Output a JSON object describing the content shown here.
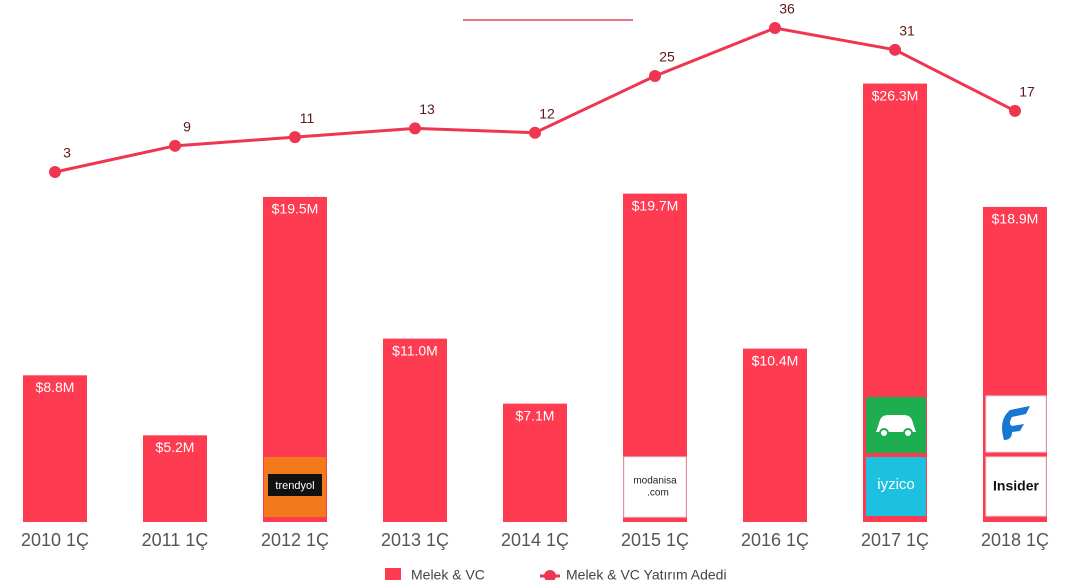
{
  "chart_data": {
    "type": "bar",
    "categories": [
      "2010 1Ç",
      "2011 1Ç",
      "2012 1Ç",
      "2013 1Ç",
      "2014 1Ç",
      "2015 1Ç",
      "2016 1Ç",
      "2017 1Ç",
      "2018 1Ç"
    ],
    "series": [
      {
        "name": "Melek & VC",
        "type": "bar",
        "color": "#fe3b51",
        "values": [
          8.8,
          5.2,
          19.5,
          11.0,
          7.1,
          19.7,
          10.4,
          26.3,
          18.9
        ],
        "value_labels": [
          "$8.8M",
          "$5.2M",
          "$19.5M",
          "$11.0M",
          "$7.1M",
          "$19.7M",
          "$10.4M",
          "$26.3M",
          "$18.9M"
        ]
      },
      {
        "name": "Melek & VC Yatırım Adedi",
        "type": "line",
        "color": "#ef3650",
        "values": [
          3,
          9,
          11,
          13,
          12,
          25,
          36,
          31,
          17
        ]
      }
    ],
    "annotations": [
      "trendyol",
      "modanisa",
      ".com",
      "iyzico",
      "Insider"
    ]
  }
}
